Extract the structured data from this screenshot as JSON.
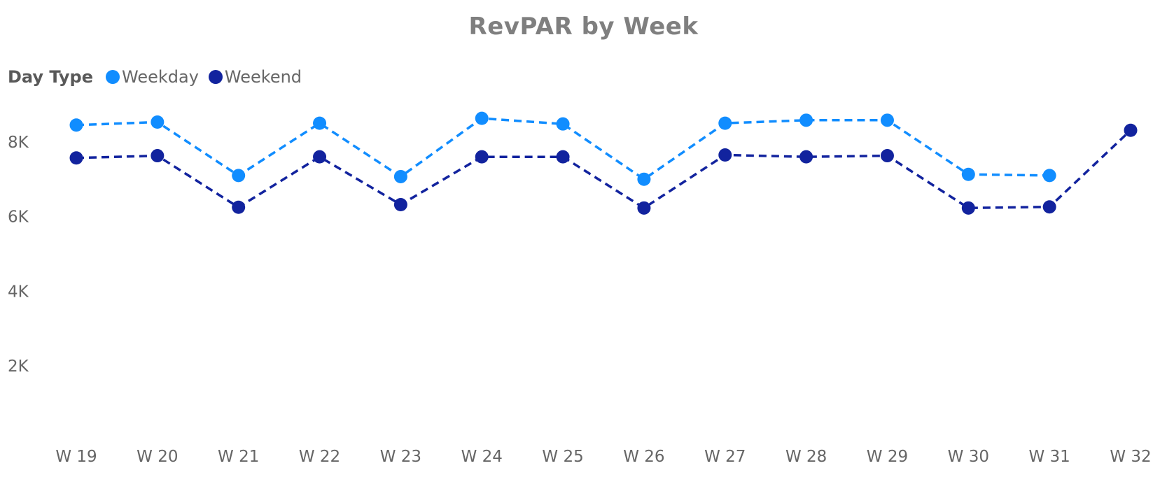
{
  "chart_data": {
    "type": "line",
    "title": "RevPAR by Week",
    "xlabel": "",
    "ylabel": "",
    "legend": {
      "title": "Day Type",
      "placement": "top-left"
    },
    "categories": [
      "W 19",
      "W 20",
      "W 21",
      "W 22",
      "W 23",
      "W 24",
      "W 25",
      "W 26",
      "W 27",
      "W 28",
      "W 29",
      "W 30",
      "W 31",
      "W 32"
    ],
    "y_ticks": [
      {
        "value": 2000,
        "label": "2K"
      },
      {
        "value": 4000,
        "label": "4K"
      },
      {
        "value": 6000,
        "label": "6K"
      },
      {
        "value": 8000,
        "label": "8K"
      }
    ],
    "ylim": [
      0,
      9000
    ],
    "grid": false,
    "series": [
      {
        "name": "Weekday",
        "color": "#118dff",
        "line_style": "dashed",
        "values": [
          8450,
          8530,
          7100,
          8500,
          7070,
          8630,
          8480,
          7000,
          8500,
          8580,
          8580,
          7130,
          7100,
          null
        ]
      },
      {
        "name": "Weekend",
        "color": "#12239e",
        "line_style": "dashed",
        "values": [
          7570,
          7630,
          6250,
          7600,
          6320,
          7600,
          7600,
          6230,
          7650,
          7600,
          7630,
          6230,
          6260,
          8310
        ]
      }
    ]
  }
}
